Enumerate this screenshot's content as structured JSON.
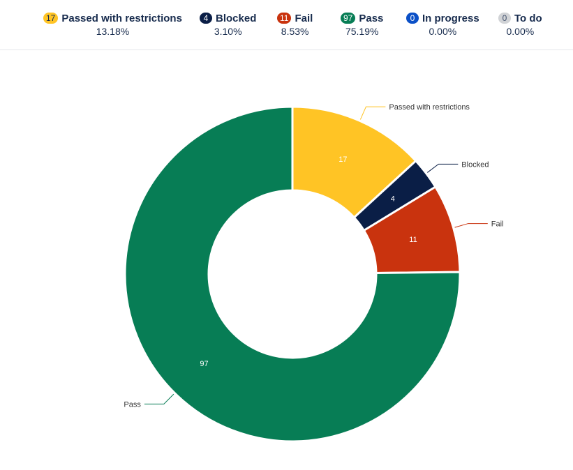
{
  "summary": [
    {
      "count": "17",
      "label": "Passed with restrictions",
      "percent": "13.18%",
      "badge_bg": "#FFC425",
      "badge_fg": "#172B4D"
    },
    {
      "count": "4",
      "label": "Blocked",
      "percent": "3.10%",
      "badge_bg": "#0A1E46",
      "badge_fg": "#FFFFFF"
    },
    {
      "count": "11",
      "label": "Fail",
      "percent": "8.53%",
      "badge_bg": "#C9330E",
      "badge_fg": "#FFFFFF"
    },
    {
      "count": "97",
      "label": "Pass",
      "percent": "75.19%",
      "badge_bg": "#077D55",
      "badge_fg": "#FFFFFF"
    },
    {
      "count": "0",
      "label": "In progress",
      "percent": "0.00%",
      "badge_bg": "#0B50C7",
      "badge_fg": "#FFFFFF"
    },
    {
      "count": "0",
      "label": "To do",
      "percent": "0.00%",
      "badge_bg": "#D1D3D6",
      "badge_fg": "#42526E"
    }
  ],
  "chart_data": {
    "type": "pie",
    "donut": true,
    "slices": [
      {
        "label": "Passed with restrictions",
        "value": 17,
        "color": "#FFC425",
        "value_color": "#FFFFFF"
      },
      {
        "label": "Blocked",
        "value": 4,
        "color": "#0A1E46",
        "value_color": "#FFFFFF"
      },
      {
        "label": "Fail",
        "value": 11,
        "color": "#C9330E",
        "value_color": "#FFFFFF"
      },
      {
        "label": "Pass",
        "value": 97,
        "color": "#077D55",
        "value_color": "#FFFFFF"
      }
    ]
  }
}
